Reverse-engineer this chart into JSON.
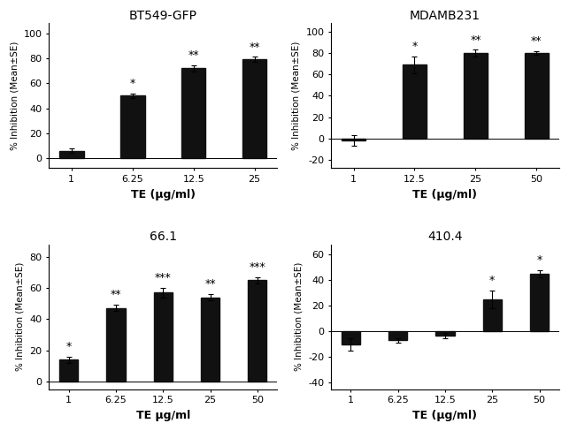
{
  "panels": [
    {
      "title": "BT549-GFP",
      "categories": [
        "1",
        "6.25",
        "12.5",
        "25"
      ],
      "values": [
        6,
        50,
        72,
        79
      ],
      "errors": [
        2,
        2,
        2.5,
        2
      ],
      "stars": [
        "",
        "*",
        "**",
        "**"
      ],
      "xlabel": "TE (μg/ml)",
      "ylabel": "% Inhibition (Mean±SE)",
      "ylim": [
        -8,
        108
      ],
      "yticks": [
        0,
        20,
        40,
        60,
        80,
        100
      ]
    },
    {
      "title": "MDAMB231",
      "categories": [
        "1",
        "12.5",
        "25",
        "50"
      ],
      "values": [
        -2,
        69,
        80,
        80
      ],
      "errors": [
        5,
        8,
        3,
        2
      ],
      "stars": [
        "",
        "*",
        "**",
        "**"
      ],
      "xlabel": "TE (μg/ml)",
      "ylabel": "% Inhibition (Mean±SE)",
      "ylim": [
        -28,
        108
      ],
      "yticks": [
        -20,
        0,
        20,
        40,
        60,
        80,
        100
      ]
    },
    {
      "title": "66.1",
      "categories": [
        "1",
        "6.25",
        "12.5",
        "25",
        "50"
      ],
      "values": [
        14,
        47,
        57,
        54,
        65
      ],
      "errors": [
        2,
        2,
        3,
        2,
        2
      ],
      "stars": [
        "*",
        "**",
        "***",
        "**",
        "***"
      ],
      "xlabel": "TE μg/ml",
      "ylabel": "% Inhibition (Mean±SE)",
      "ylim": [
        -5,
        88
      ],
      "yticks": [
        0,
        20,
        40,
        60,
        80
      ]
    },
    {
      "title": "410.4",
      "categories": [
        "1",
        "6.25",
        "12.5",
        "25",
        "50"
      ],
      "values": [
        -10,
        -7,
        -3,
        25,
        45
      ],
      "errors": [
        5,
        2,
        2,
        7,
        3
      ],
      "stars": [
        "",
        "",
        "",
        "*",
        "*"
      ],
      "xlabel": "TE (μg/ml)",
      "ylabel": "% Inhibition (Mean±SE)",
      "ylim": [
        -45,
        68
      ],
      "yticks": [
        -40,
        -20,
        0,
        20,
        40,
        60
      ]
    }
  ],
  "bar_color": "#111111",
  "bar_width": 0.4,
  "figure_bg": "#ffffff",
  "fontsize_title": 10,
  "fontsize_xlabel": 9,
  "fontsize_ylabel": 7.5,
  "fontsize_tick": 8,
  "fontsize_star": 9
}
